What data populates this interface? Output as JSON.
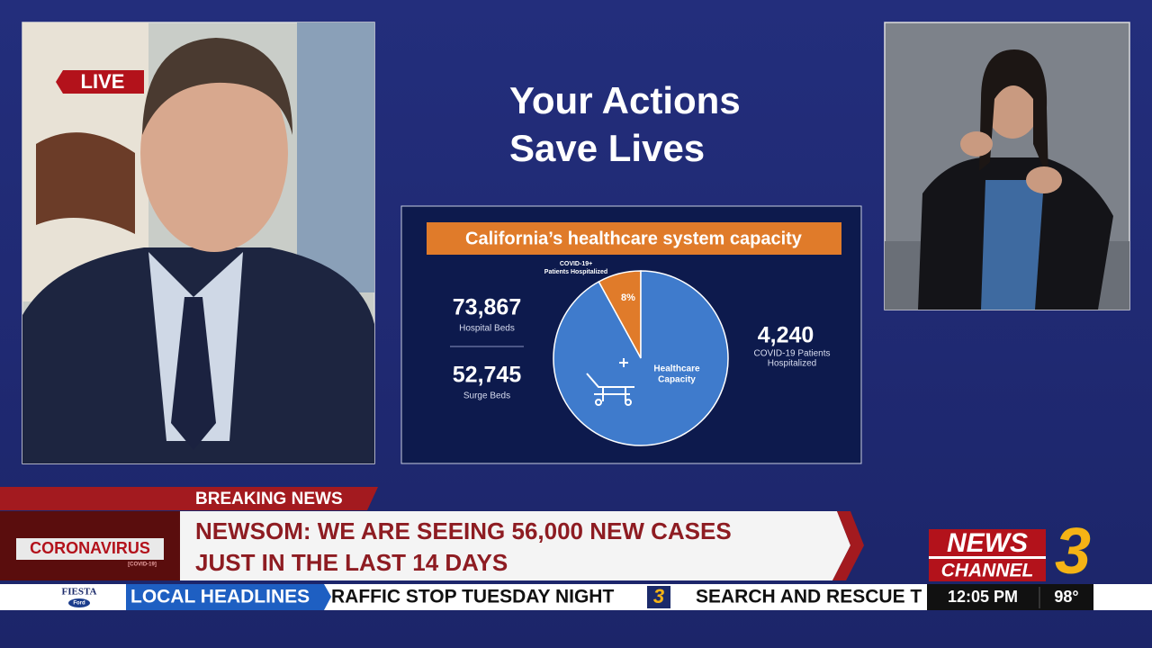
{
  "live_badge": "LIVE",
  "slide": {
    "title_lines": [
      "Your Actions",
      "Save Lives"
    ],
    "chart_title": "California’s healthcare system capacity",
    "stats_left": [
      {
        "value": "73,867",
        "label": "Hospital Beds"
      },
      {
        "value": "52,745",
        "label": "Surge Beds"
      }
    ],
    "stat_right": {
      "value": "4,240",
      "label_lines": [
        "COVID-19 Patients",
        "Hospitalized"
      ]
    },
    "pie": {
      "type": "pie",
      "labels": [
        [
          "COVID-19+",
          "Patients Hospitalized"
        ],
        [
          "Healthcare",
          "Capacity"
        ]
      ],
      "values": [
        8,
        92
      ],
      "value_labels": [
        "8%",
        null
      ],
      "colors": [
        "#e07b2a",
        "#3f7bcc"
      ]
    }
  },
  "lower_third": {
    "tag": "BREAKING NEWS",
    "headline_lines": [
      "NEWSOM: WE ARE SEEING 56,000 NEW CASES",
      "JUST IN THE LAST 14 DAYS"
    ],
    "topic": "CORONAVIRUS",
    "topic_sub": "[COVID-19]"
  },
  "ticker": {
    "sponsor": "FIESTA",
    "sponsor_sub": "Ford",
    "section": "LOCAL HEADLINES",
    "items": [
      "RAFFIC STOP TUESDAY NIGHT",
      "SEARCH AND RESCUE T"
    ],
    "time": "12:05 PM",
    "temperature": "98°"
  },
  "logo": {
    "line1": "NEWS",
    "line2": "CHANNEL",
    "number": "3"
  }
}
